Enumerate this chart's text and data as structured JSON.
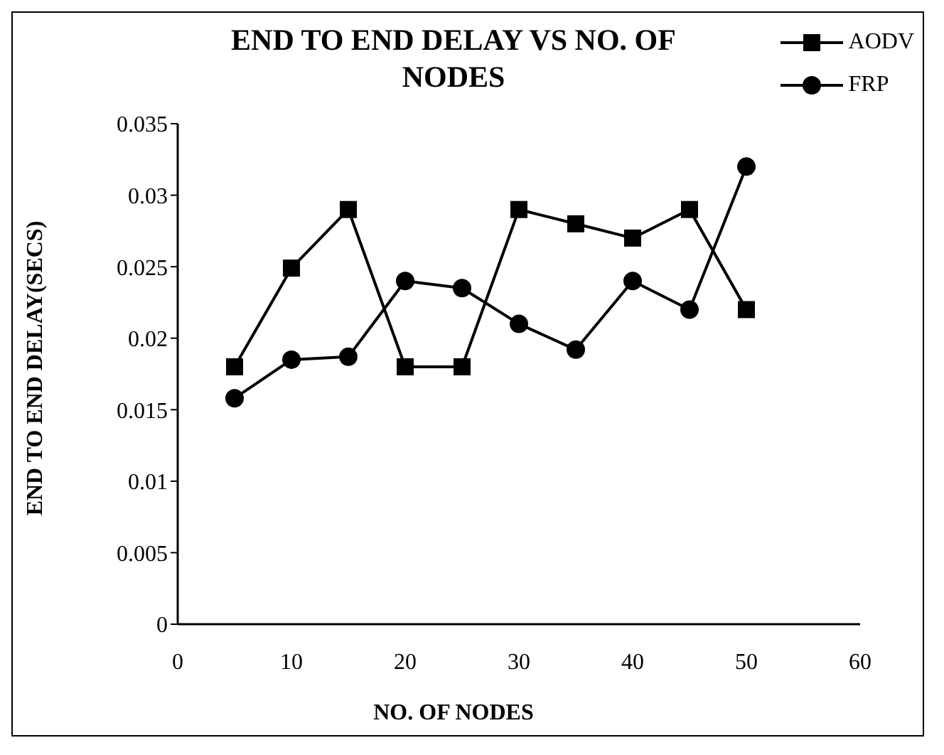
{
  "chart_data": {
    "type": "line",
    "title": "END TO END DELAY VS NO. OF NODES",
    "xlabel": "NO. OF NODES",
    "ylabel": "END TO END DELAY(SECS)",
    "x": [
      5,
      10,
      15,
      20,
      25,
      30,
      35,
      40,
      45,
      50
    ],
    "series": [
      {
        "name": "AODV",
        "color": "#000000",
        "marker": "square",
        "values": [
          0.018,
          0.0249,
          0.029,
          0.018,
          0.018,
          0.029,
          0.028,
          0.027,
          0.029,
          0.022
        ]
      },
      {
        "name": "FRP",
        "color": "#000000",
        "marker": "circle",
        "values": [
          0.0158,
          0.0185,
          0.0187,
          0.024,
          0.0235,
          0.021,
          0.0192,
          0.024,
          0.022,
          0.032
        ]
      }
    ],
    "xlim": [
      0,
      60
    ],
    "xticks": [
      0,
      10,
      20,
      30,
      40,
      50,
      60
    ],
    "ylim": [
      0,
      0.035
    ],
    "yticks": [
      0,
      0.005,
      0.01,
      0.015,
      0.02,
      0.025,
      0.03,
      0.035
    ],
    "grid": false,
    "legend": "top right",
    "line_style": "solid"
  }
}
